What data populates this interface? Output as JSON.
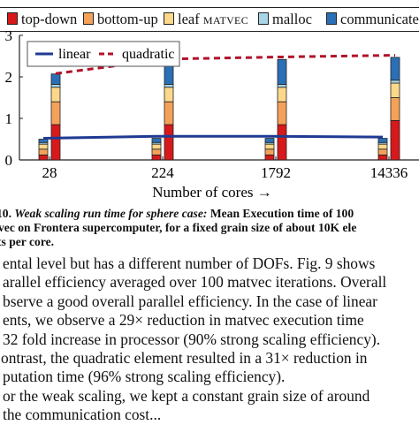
{
  "legend": {
    "items": [
      {
        "label": "top-down",
        "color": "#d7191c"
      },
      {
        "label": "bottom-up",
        "color": "#f4a259"
      },
      {
        "label": "leaf ",
        "label_sc": "matvec",
        "color": "#fbd88a"
      },
      {
        "label": "malloc",
        "color": "#a8d5e8"
      },
      {
        "label": "communicate",
        "color": "#2b6fb5"
      }
    ]
  },
  "chart_data": {
    "type": "bar",
    "categories": [
      "28",
      "224",
      "1792",
      "14336"
    ],
    "xlabel": "Number of cores →",
    "ylim": [
      0,
      3
    ],
    "yticks": [
      "0",
      "1",
      "2",
      "3"
    ],
    "grid": false,
    "stacked": true,
    "bar_groups": [
      {
        "name": "linear",
        "series": [
          {
            "name": "top-down",
            "values": [
              0.12,
              0.12,
              0.12,
              0.12
            ]
          },
          {
            "name": "bottom-up",
            "values": [
              0.14,
              0.14,
              0.14,
              0.14
            ]
          },
          {
            "name": "leaf matvec",
            "values": [
              0.12,
              0.12,
              0.12,
              0.12
            ]
          },
          {
            "name": "malloc",
            "values": [
              0.04,
              0.04,
              0.04,
              0.04
            ]
          },
          {
            "name": "communicate",
            "values": [
              0.08,
              0.1,
              0.1,
              0.1
            ]
          }
        ]
      },
      {
        "name": "quadratic",
        "series": [
          {
            "name": "top-down",
            "values": [
              0.85,
              0.85,
              0.85,
              0.95
            ]
          },
          {
            "name": "bottom-up",
            "values": [
              0.55,
              0.55,
              0.55,
              0.55
            ]
          },
          {
            "name": "leaf matvec",
            "values": [
              0.35,
              0.35,
              0.35,
              0.35
            ]
          },
          {
            "name": "malloc",
            "values": [
              0.07,
              0.07,
              0.07,
              0.07
            ]
          },
          {
            "name": "communicate",
            "values": [
              0.25,
              0.6,
              0.6,
              0.55
            ]
          }
        ]
      }
    ],
    "lines": [
      {
        "name": "linear",
        "style": "solid",
        "color": "#1f3a93",
        "values": [
          0.52,
          0.57,
          0.57,
          0.55
        ]
      },
      {
        "name": "quadratic",
        "style": "dashed",
        "color": "#b0122a",
        "values": [
          2.08,
          2.43,
          2.48,
          2.52
        ]
      }
    ]
  },
  "caption": {
    "lines": [
      {
        "number": "10.",
        "title": "Weak scaling run time for sphere case:",
        "text": "Mean Execution time of 100"
      },
      {
        "text": "vec on Frontera supercomputer, for a fixed grain size of about 10K ele"
      },
      {
        "text": "ts per core."
      }
    ]
  },
  "body_lines": [
    "ental level but has a different number of DOFs. Fig. 9 shows",
    "arallel efficiency averaged over 100 matvec iterations. Overall",
    "bserve a good overall parallel efficiency. In the case of linear",
    "ents, we observe a 29× reduction in matvec execution time",
    "32 fold increase in processor (90% strong scaling efficiency).",
    "ontrast, the quadratic element resulted in a 31× reduction in",
    "putation time (96% strong scaling efficiency).",
    "or the weak scaling, we kept a constant grain size of around",
    "the communication cost..."
  ]
}
